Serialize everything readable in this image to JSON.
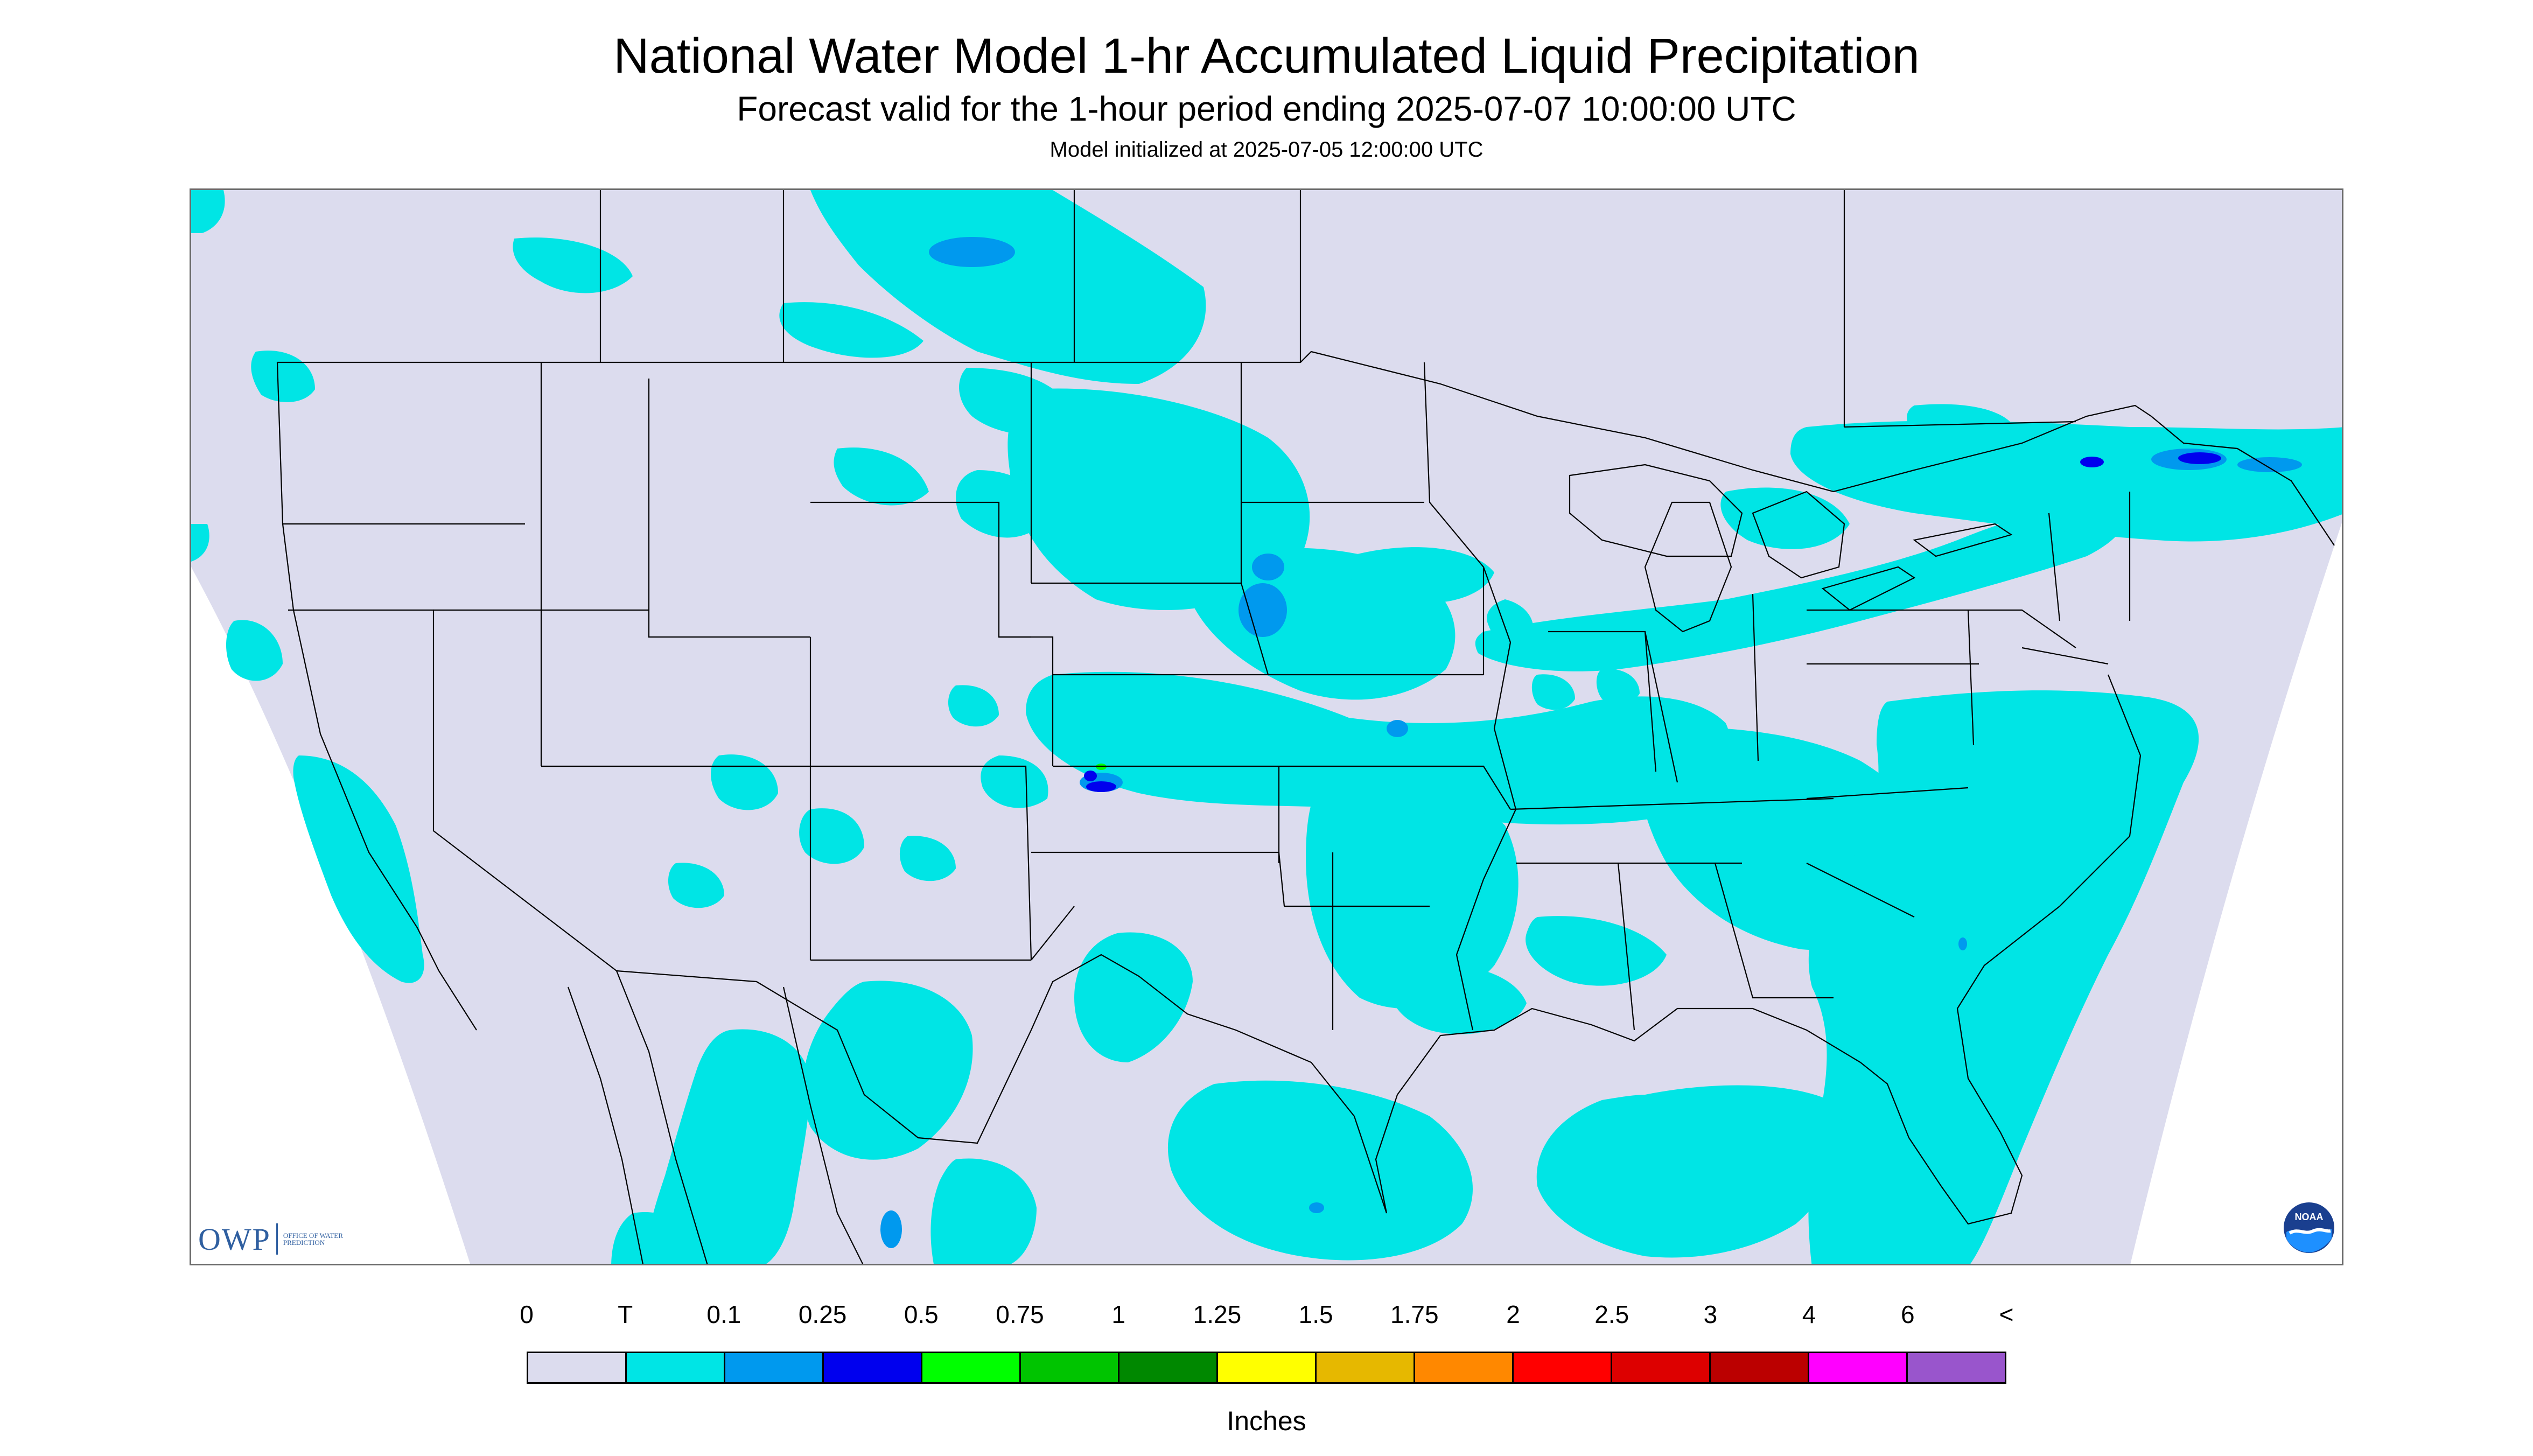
{
  "header": {
    "title": "National Water Model 1-hr Accumulated Liquid Precipitation",
    "subtitle": "Forecast valid for the 1-hour period ending 2025-07-07 10:00:00 UTC",
    "model_init": "Model initialized at 2025-07-05 12:00:00 UTC"
  },
  "logos": {
    "owp_text": "OWP",
    "owp_subtext": "OFFICE OF WATER PREDICTION",
    "noaa_text": "NOAA"
  },
  "legend": {
    "labels": [
      "0",
      "T",
      "0.1",
      "0.25",
      "0.5",
      "0.75",
      "1",
      "1.25",
      "1.5",
      "1.75",
      "2",
      "2.5",
      "3",
      "4",
      "6",
      "<"
    ],
    "colors": [
      "#dcdcee",
      "#00e5e5",
      "#0099ee",
      "#0000ee",
      "#00ff00",
      "#00c400",
      "#008800",
      "#ffff00",
      "#e6b800",
      "#ff8800",
      "#ff0000",
      "#dd0000",
      "#bb0000",
      "#ff00ff",
      "#9955cc"
    ],
    "units": "Inches"
  },
  "map": {
    "background_color": "#dcdcee",
    "trace_color": "#00e5e5",
    "light_color": "#0099ee",
    "heavy_color": "#0000ee",
    "peak_color": "#00ff00",
    "boundary_color": "#000000"
  }
}
